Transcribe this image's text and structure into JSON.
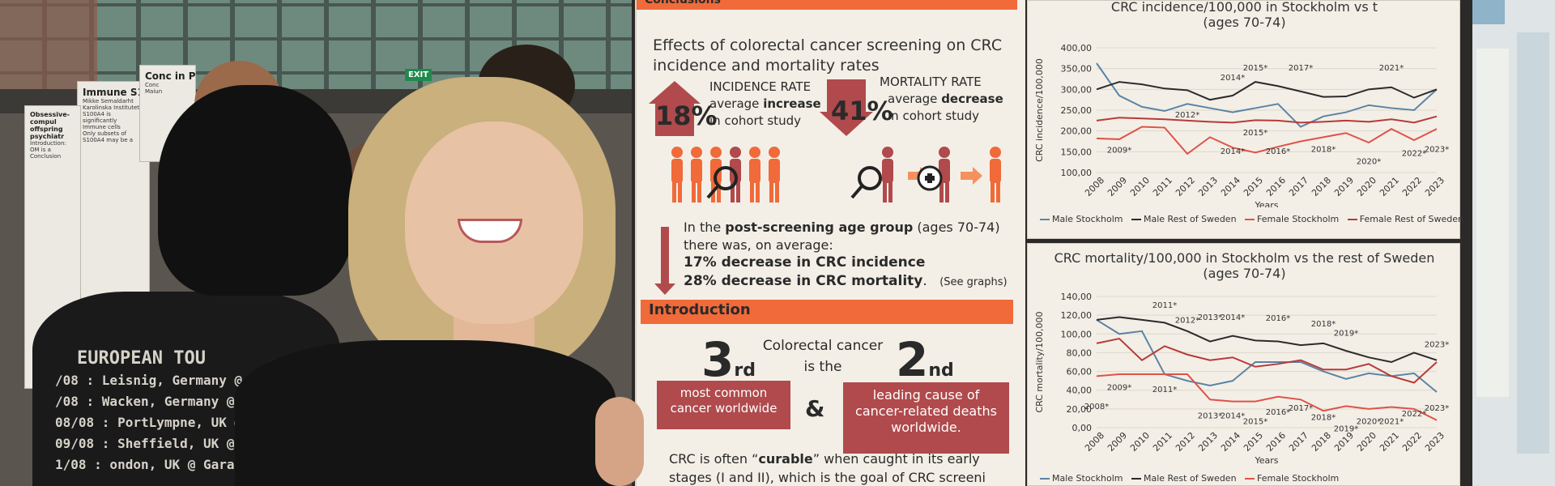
{
  "background": {
    "exit_sign": "EXIT",
    "posters": [
      {
        "title": "Immune S100A4 in",
        "lines": [
          "Mikke Semaldarht",
          "Karolinska Institutet",
          "S100A4 is significantly",
          "Immune cells",
          "Only subsets of",
          "S100A4 may be a"
        ]
      },
      {
        "title": "Conc in P",
        "lines": [
          "Conc",
          "Maiun"
        ]
      },
      {
        "title": "Obsessive-compul offspring psychiatr",
        "lines": [
          "Introduction:",
          "OM is a",
          "Conclusion"
        ]
      }
    ]
  },
  "shirt": {
    "lines": [
      "EUROPEAN TOU",
      "/08 : Leisnig, Germany @ Sucks N",
      "/08 : Wacken, Germany @ Wacken",
      "08/08 : PortLympne, UK @ Hey",
      "09/08 : Sheffield, UK @ Corpor",
      "1/08 : ondon, UK @ Garag"
    ]
  },
  "poster": {
    "section_top": "Conclusions",
    "title": "Effects of colorectal cancer screening on CRC incidence and mortality rates",
    "incidence": {
      "pct": "18%",
      "label": "INCIDENCE RATE",
      "line2_pre": "average ",
      "line2_bold": "increase",
      "line3": "in cohort study"
    },
    "mortality": {
      "pct": "41%",
      "label": "MORTALITY RATE",
      "line2_pre": "average ",
      "line2_bold": "decrease",
      "line3": "in cohort study"
    },
    "post": {
      "line1_pre": "In the ",
      "line1_bold": "post-screening age group",
      "line1_post": " (ages 70-74)",
      "line2": "there was, on average:",
      "line3": "17% decrease in CRC incidence",
      "line4": "28% decrease in CRC mortality",
      "line4_post": ".",
      "see": "(See graphs)"
    },
    "intro": {
      "header": "Introduction",
      "rank1": "3",
      "rank1_sup": "rd",
      "rank2": "2",
      "rank2_sup": "nd",
      "middle_line1": "Colorectal cancer",
      "middle_line2": "is the",
      "box1": "most common cancer worldwide",
      "amp": "&",
      "box2": "leading cause of cancer-related deaths worldwide.",
      "crc_pre": "CRC is often “",
      "crc_bold": "curable",
      "crc_post": "” when caught in its early stages (I and II), which is the goal of CRC screeni"
    }
  },
  "colors": {
    "orange": "#f06a3a",
    "maroon": "#b04a4c",
    "male_stockholm": "#5b84a6",
    "male_rest": "#2b2b2b",
    "female_stockholm": "#e0524a",
    "female_rest": "#b83a3a"
  },
  "chart_data": [
    {
      "type": "line",
      "title": "CRC incidence/100,000 in Stockholm vs the (ages 70-74)",
      "title_line1": "CRC incidence/100,000 in Stockholm vs t",
      "title_line2": "(ages 70-74)",
      "xlabel": "Years",
      "ylabel": "CRC incidence/100,000",
      "x": [
        2008,
        2009,
        2010,
        2011,
        2012,
        2013,
        2014,
        2015,
        2016,
        2017,
        2018,
        2019,
        2020,
        2021,
        2022,
        2023
      ],
      "ylim": [
        100,
        400
      ],
      "yticks": [
        "400,00",
        "350,00",
        "300,00",
        "250,00",
        "200,00",
        "150,00",
        "100,00"
      ],
      "series": [
        {
          "name": "Male Stockholm",
          "values": [
            363,
            285,
            258,
            248,
            265,
            255,
            245,
            255,
            265,
            210,
            235,
            245,
            262,
            255,
            250,
            300
          ]
        },
        {
          "name": "Male Rest of Sweden",
          "values": [
            300,
            318,
            312,
            302,
            298,
            275,
            285,
            318,
            308,
            295,
            282,
            283,
            300,
            305,
            280,
            300
          ]
        },
        {
          "name": "Female Stockholm",
          "values": [
            182,
            180,
            210,
            208,
            145,
            185,
            160,
            148,
            162,
            175,
            185,
            195,
            172,
            205,
            178,
            205
          ]
        },
        {
          "name": "Female Rest of Sweden",
          "values": [
            225,
            232,
            230,
            228,
            225,
            222,
            220,
            226,
            225,
            220,
            222,
            225,
            222,
            228,
            220,
            235
          ]
        }
      ],
      "annotations": [
        {
          "label": "2009*",
          "x": 2009,
          "y": 148
        },
        {
          "label": "2012*",
          "x": 2012,
          "y": 232
        },
        {
          "label": "2014*",
          "x": 2014,
          "y": 322
        },
        {
          "label": "2014*",
          "x": 2014,
          "y": 145
        },
        {
          "label": "2015*",
          "x": 2015,
          "y": 345
        },
        {
          "label": "2015*",
          "x": 2015,
          "y": 190
        },
        {
          "label": "2016*",
          "x": 2016,
          "y": 145
        },
        {
          "label": "2017*",
          "x": 2017,
          "y": 345
        },
        {
          "label": "2018*",
          "x": 2018,
          "y": 150
        },
        {
          "label": "2020*",
          "x": 2020,
          "y": 120
        },
        {
          "label": "2021*",
          "x": 2021,
          "y": 345
        },
        {
          "label": "2022*",
          "x": 2022,
          "y": 140
        },
        {
          "label": "2023*",
          "x": 2023,
          "y": 150
        }
      ]
    },
    {
      "type": "line",
      "title": "CRC mortality/100,000 in Stockholm vs the rest of Sweden (ages 70-74)",
      "title_line1": "CRC mortality/100,000 in Stockholm vs the rest of Sweden",
      "title_line2": "(ages 70-74)",
      "xlabel": "Years",
      "ylabel": "CRC mortality/100,000",
      "x": [
        2008,
        2009,
        2010,
        2011,
        2012,
        2013,
        2014,
        2015,
        2016,
        2017,
        2018,
        2019,
        2020,
        2021,
        2022,
        2023
      ],
      "ylim": [
        0,
        140
      ],
      "yticks": [
        "140,00",
        "120,00",
        "100,00",
        "80,00",
        "60,00",
        "40,00",
        "20,00",
        "0,00"
      ],
      "series": [
        {
          "name": "Male Stockholm",
          "values": [
            115,
            100,
            103,
            57,
            50,
            45,
            50,
            70,
            70,
            70,
            60,
            52,
            58,
            55,
            58,
            38
          ]
        },
        {
          "name": "Male Rest of Sweden",
          "values": [
            115,
            118,
            115,
            112,
            103,
            92,
            98,
            93,
            92,
            88,
            90,
            82,
            75,
            70,
            80,
            72
          ]
        },
        {
          "name": "Female Stockholm",
          "values": [
            55,
            57,
            57,
            57,
            57,
            30,
            28,
            28,
            33,
            30,
            18,
            23,
            20,
            22,
            20,
            8
          ]
        },
        {
          "name": "Female Rest of Sweden",
          "values": [
            90,
            95,
            72,
            87,
            78,
            72,
            75,
            65,
            68,
            72,
            62,
            62,
            68,
            55,
            48,
            70
          ]
        }
      ],
      "annotations": [
        {
          "label": "2008*",
          "x": 2008,
          "y": 20
        },
        {
          "label": "2009*",
          "x": 2009,
          "y": 40
        },
        {
          "label": "2011*",
          "x": 2011,
          "y": 128
        },
        {
          "label": "2011*",
          "x": 2011,
          "y": 38
        },
        {
          "label": "2012*",
          "x": 2012,
          "y": 112
        },
        {
          "label": "2013*",
          "x": 2013,
          "y": 115
        },
        {
          "label": "2013*",
          "x": 2013,
          "y": 10
        },
        {
          "label": "2014*",
          "x": 2014,
          "y": 115
        },
        {
          "label": "2014*",
          "x": 2014,
          "y": 10
        },
        {
          "label": "2015*",
          "x": 2015,
          "y": 4
        },
        {
          "label": "2016*",
          "x": 2016,
          "y": 114
        },
        {
          "label": "2016*",
          "x": 2016,
          "y": 14
        },
        {
          "label": "2017*",
          "x": 2017,
          "y": 18
        },
        {
          "label": "2018*",
          "x": 2018,
          "y": 108
        },
        {
          "label": "2018*",
          "x": 2018,
          "y": 8
        },
        {
          "label": "2019*",
          "x": 2019,
          "y": 98
        },
        {
          "label": "2019*",
          "x": 2019,
          "y": -4
        },
        {
          "label": "2020*",
          "x": 2020,
          "y": 4
        },
        {
          "label": "2021*",
          "x": 2021,
          "y": 4
        },
        {
          "label": "2022*",
          "x": 2022,
          "y": 12
        },
        {
          "label": "2023*",
          "x": 2023,
          "y": 86
        },
        {
          "label": "2023*",
          "x": 2023,
          "y": 18
        }
      ]
    }
  ]
}
